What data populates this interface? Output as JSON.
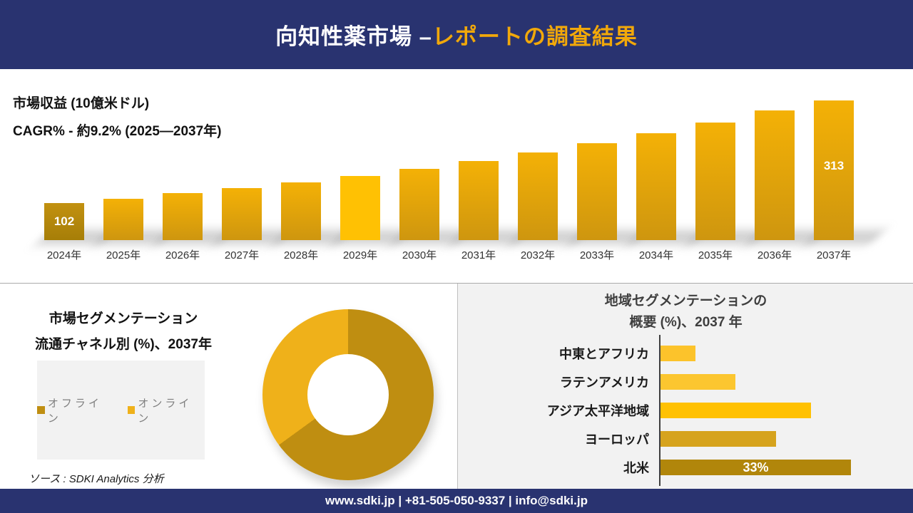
{
  "header": {
    "title_part1": "向知性薬市場 –",
    "title_part2": "レポートの調査結果"
  },
  "revenue_section": {
    "metric_label": "市場収益 (10億米ドル)",
    "cagr_label": "CAGR% - 約9.2% (2025―2037年)"
  },
  "segmentation_section": {
    "title_line1": "市場セグメンテーション",
    "title_line2": "流通チャネル別 (%)、2037年",
    "source_note": "ソース : SDKI Analytics 分析"
  },
  "regional_section": {
    "title_line1": "地域セグメンテーションの",
    "title_line2": "概要 (%)、2037 年"
  },
  "footer": {
    "contact_line": "www.sdki.jp | +81-505-050-9337 | info@sdki.jp"
  },
  "colors": {
    "navy": "#293370",
    "header_accent_gold": "#F1A80A",
    "panel_gray": "#F2F2F2",
    "axis_gray": "#3F3F3F",
    "legend_text_gray": "#7F7F7F"
  },
  "chart_data": [
    {
      "id": "revenue_by_year",
      "type": "bar",
      "title": "市場収益 (10億米ドル)",
      "subtitle": "CAGR% - 約9.2% (2025―2037年)",
      "categories": [
        "2024年",
        "2025年",
        "2026年",
        "2027年",
        "2028年",
        "2029年",
        "2030年",
        "2031年",
        "2032年",
        "2033年",
        "2034年",
        "2035年",
        "2036年",
        "2037年"
      ],
      "values": [
        102,
        111,
        122,
        133,
        145,
        158,
        173,
        189,
        206,
        225,
        246,
        268,
        293,
        313
      ],
      "shown_value_labels": {
        "2024年": "102",
        "2037年": "313"
      },
      "highlight_category": "2029年",
      "bar_color_default_top": "#F4B106",
      "bar_color_default_bottom": "#CE960F",
      "bar_color_first_top": "#C29110",
      "bar_color_first_bottom": "#A67E08",
      "bar_color_highlight": "#FFC103",
      "ylim": [
        0,
        330
      ],
      "grid": false,
      "legend_position": "none"
    },
    {
      "id": "distribution_channel_share",
      "type": "pie",
      "donut": true,
      "title": "市場セグメンテーション 流通チャネル別 (%)、2037年",
      "slices": [
        {
          "label": "オフライン",
          "value": 65,
          "color": "#BF8E11"
        },
        {
          "label": "オンライン",
          "value": 35,
          "color": "#EFB11A"
        }
      ],
      "start_angle_deg": 0,
      "legend_position": "left-box"
    },
    {
      "id": "regional_share",
      "type": "bar",
      "orientation": "horizontal",
      "title": "地域セグメンテーションの概要 (%)、2037 年",
      "categories": [
        "中東とアフリカ",
        "ラテンアメリカ",
        "アジア太平洋地域",
        "ヨーロッパ",
        "北米"
      ],
      "values": [
        6,
        13,
        26,
        20,
        33
      ],
      "colors": [
        "#FCC32B",
        "#FCC62F",
        "#FFC103",
        "#D6A31D",
        "#B1860B"
      ],
      "shown_value_labels": {
        "北米": "33%"
      },
      "xlim": [
        0,
        36
      ],
      "grid": false,
      "legend_position": "none"
    }
  ]
}
